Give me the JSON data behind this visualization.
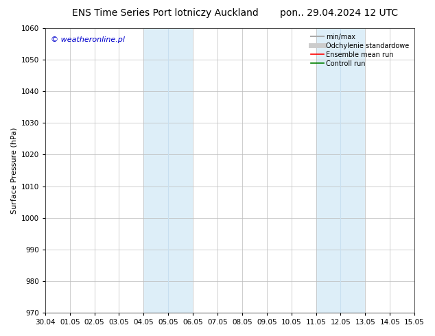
{
  "title_left": "ENS Time Series Port lotniczy Auckland",
  "title_right": "pon.. 29.04.2024 12 UTC",
  "ylabel": "Surface Pressure (hPa)",
  "ylim": [
    970,
    1060
  ],
  "yticks": [
    970,
    980,
    990,
    1000,
    1010,
    1020,
    1030,
    1040,
    1050,
    1060
  ],
  "xtick_labels": [
    "30.04",
    "01.05",
    "02.05",
    "03.05",
    "04.05",
    "05.05",
    "06.05",
    "07.05",
    "08.05",
    "09.05",
    "10.05",
    "11.05",
    "12.05",
    "13.05",
    "14.05",
    "15.05"
  ],
  "watermark": "© weatheronline.pl",
  "watermark_color": "#0000cc",
  "bg_color": "#ffffff",
  "plot_bg_color": "#ffffff",
  "shaded_regions": [
    {
      "xstart": 4,
      "xend": 6,
      "color": "#ddeef8"
    },
    {
      "xstart": 11,
      "xend": 13,
      "color": "#ddeef8"
    }
  ],
  "shaded_line_x": [
    5,
    12
  ],
  "legend_entries": [
    {
      "label": "min/max",
      "color": "#aaaaaa",
      "lw": 1.5,
      "linestyle": "-"
    },
    {
      "label": "Odchylenie standardowe",
      "color": "#cccccc",
      "lw": 5,
      "linestyle": "-"
    },
    {
      "label": "Ensemble mean run",
      "color": "#ff0000",
      "lw": 1.2,
      "linestyle": "-"
    },
    {
      "label": "Controll run",
      "color": "#008000",
      "lw": 1.2,
      "linestyle": "-"
    }
  ],
  "grid_color": "#bbbbbb",
  "title_fontsize": 10,
  "axis_label_fontsize": 8,
  "tick_fontsize": 7.5,
  "legend_fontsize": 7,
  "watermark_fontsize": 8,
  "x_tick_positions": [
    0,
    1,
    2,
    3,
    4,
    5,
    6,
    7,
    8,
    9,
    10,
    11,
    12,
    13,
    14,
    15
  ],
  "xlim": [
    0,
    15
  ]
}
